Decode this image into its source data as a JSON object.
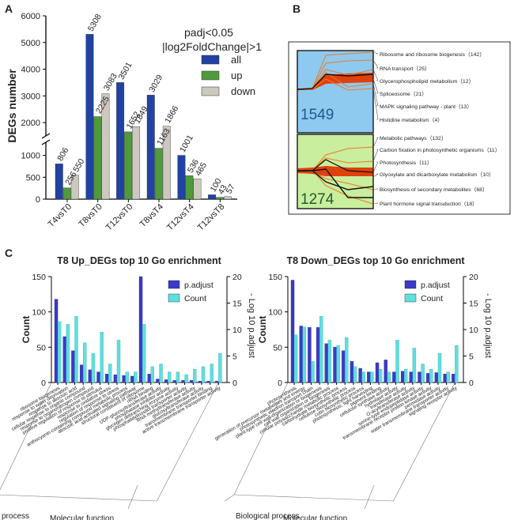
{
  "panel_labels": {
    "a": "A",
    "b": "B",
    "c": "C"
  },
  "chart_data": [
    {
      "type": "bar",
      "ylabel": "DEGs number",
      "annotation_line1": "padj<0.05",
      "annotation_line2": "|log2FoldChange|>1",
      "categories": [
        "T4vsT0",
        "T8vsT0",
        "T12vsT0",
        "T8vsT4",
        "T12vsT4",
        "T12vsT8"
      ],
      "series": [
        {
          "name": "all",
          "color": "#2142a3",
          "values": [
            806,
            5308,
            3501,
            3029,
            1001,
            100
          ]
        },
        {
          "name": "up",
          "color": "#4f9a3b",
          "values": [
            256,
            2225,
            1652,
            1163,
            536,
            43
          ]
        },
        {
          "name": "down",
          "color": "#cdc8be",
          "values": [
            550,
            3083,
            1849,
            1866,
            465,
            57
          ]
        }
      ],
      "yticks_lower": [
        "0",
        "500",
        "1000"
      ],
      "yticks_upper": [
        "2000",
        "3000",
        "4000",
        "5000",
        "6000"
      ],
      "axis_break": [
        1300,
        1500
      ],
      "ylim": [
        0,
        6000
      ]
    },
    {
      "type": "line",
      "clusters": [
        {
          "count": "1549",
          "background": "#8ec9ef",
          "pathways": [
            "Ribosome and ribosome biogenesis（142）",
            "RNA transport（25）",
            "Glycerophospholipid metabolism（12）",
            "Spliceosome（21）",
            "MAPK signaling pathway - plant（13）",
            "Histidine metabolism（4）"
          ]
        },
        {
          "count": "1274",
          "background": "#c8ee9e",
          "pathways": [
            "Metabolic pathways（132）",
            "Carbon fixation in photosynthetic organisms（11）",
            "Photosynthesis（11）",
            "Glyoxylate and dicarboxylate metabolism（10）",
            "Biosynthesis of secondary metabolites（68）",
            "Plant hormone signal transduction（18）"
          ]
        }
      ]
    },
    {
      "type": "bar",
      "title": "T8 Up_DEGs top 10 Go enrichment",
      "ylabel": "Count",
      "y2label": "- Log 10 p.adjust",
      "ylim": [
        0,
        150
      ],
      "y2lim": [
        0,
        20
      ],
      "yticks": [
        "0",
        "50",
        "100",
        "150"
      ],
      "y2ticks": [
        "0",
        "5",
        "10",
        "15",
        "20"
      ],
      "series": [
        {
          "name": "p.adjust",
          "color": "#3a3ac8"
        },
        {
          "name": "Count",
          "color": "#5fdede"
        }
      ],
      "group_labels": [
        "process",
        "Molecular function"
      ],
      "categories": [
        "ribosome biogenesis",
        "response to water deprivation",
        "response to abscisic acid",
        "cellular response to organic compound",
        "response to organonitrogen compound",
        "positive regulation of response to stimulus",
        "response to oxidative stress",
        "regulation of response to stress",
        "anthocyanin-containing compound metabolic process",
        "abscisic acid-activated signaling pathway",
        "structural constituent of ribosome",
        "rRNA binding",
        "UDP-glucosyltransferase activity",
        "phosphatase inhibitor activity",
        "glycogen debranching enzyme activity",
        "phosphatidylinositol transporter activity",
        "RNA methyltransferase activity",
        "glucosyltransferase activity",
        "transmembrane transporter binding",
        "active transmembrane transporter activity"
      ],
      "padj_values": [
        118,
        65,
        45,
        25,
        18,
        15,
        12,
        11,
        10,
        9,
        150,
        12,
        5,
        4,
        3,
        3,
        3,
        2,
        2,
        2
      ],
      "count_values": [
        11.5,
        11,
        12.5,
        7.5,
        5.5,
        9.5,
        3.5,
        8,
        2,
        2,
        11,
        3,
        3.5,
        2,
        2,
        1.5,
        2.5,
        3,
        3.5,
        5.5
      ]
    },
    {
      "type": "bar",
      "title": "T8 Down_DEGs top 10 Go enrichment",
      "ylabel": "Count",
      "y2label": "- Log 10 p.adjust",
      "ylim": [
        0,
        150
      ],
      "y2lim": [
        0,
        20
      ],
      "yticks": [
        "0",
        "50",
        "100",
        "150"
      ],
      "y2ticks": [
        "0",
        "5",
        "10",
        "15",
        "20"
      ],
      "series": [
        {
          "name": "p.adjust",
          "color": "#3a3ac8"
        },
        {
          "name": "Count",
          "color": "#5fdede"
        }
      ],
      "group_labels": [
        "Biological process",
        "Molecular function"
      ],
      "categories": [
        "photosynthesis",
        "generation of precursor metabolites and energy",
        "photosynthetic electron transport chain",
        "plant-type cell wall organization or biogenesis",
        "cell wall organization or biogenesis",
        "cellular polysaccharide metabolic process",
        "carbohydrate biosynthetic process",
        "cellulose biosynthetic process",
        "cutin biosynthetic process",
        "photosynthesis, light harvesting",
        "pigment binding",
        "cellulose synthase activity",
        "hydrolase activity",
        "transferase activity",
        "O-acyltransferase activity",
        "serine-type endopeptidase activity",
        "transmembrane receptor protein kinase activity",
        "peroxidase activity",
        "water transmembrane transporter activity",
        "signaling receptor activity"
      ],
      "padj_values": [
        145,
        80,
        78,
        78,
        55,
        50,
        45,
        30,
        20,
        15,
        28,
        32,
        15,
        16,
        15,
        15,
        13,
        14,
        12,
        12
      ],
      "count_values": [
        9,
        10.5,
        4,
        12.5,
        8,
        7,
        8.5,
        3,
        2,
        2,
        2.5,
        2,
        8,
        2.5,
        6.5,
        3.5,
        2.5,
        5.5,
        2,
        7
      ]
    }
  ]
}
